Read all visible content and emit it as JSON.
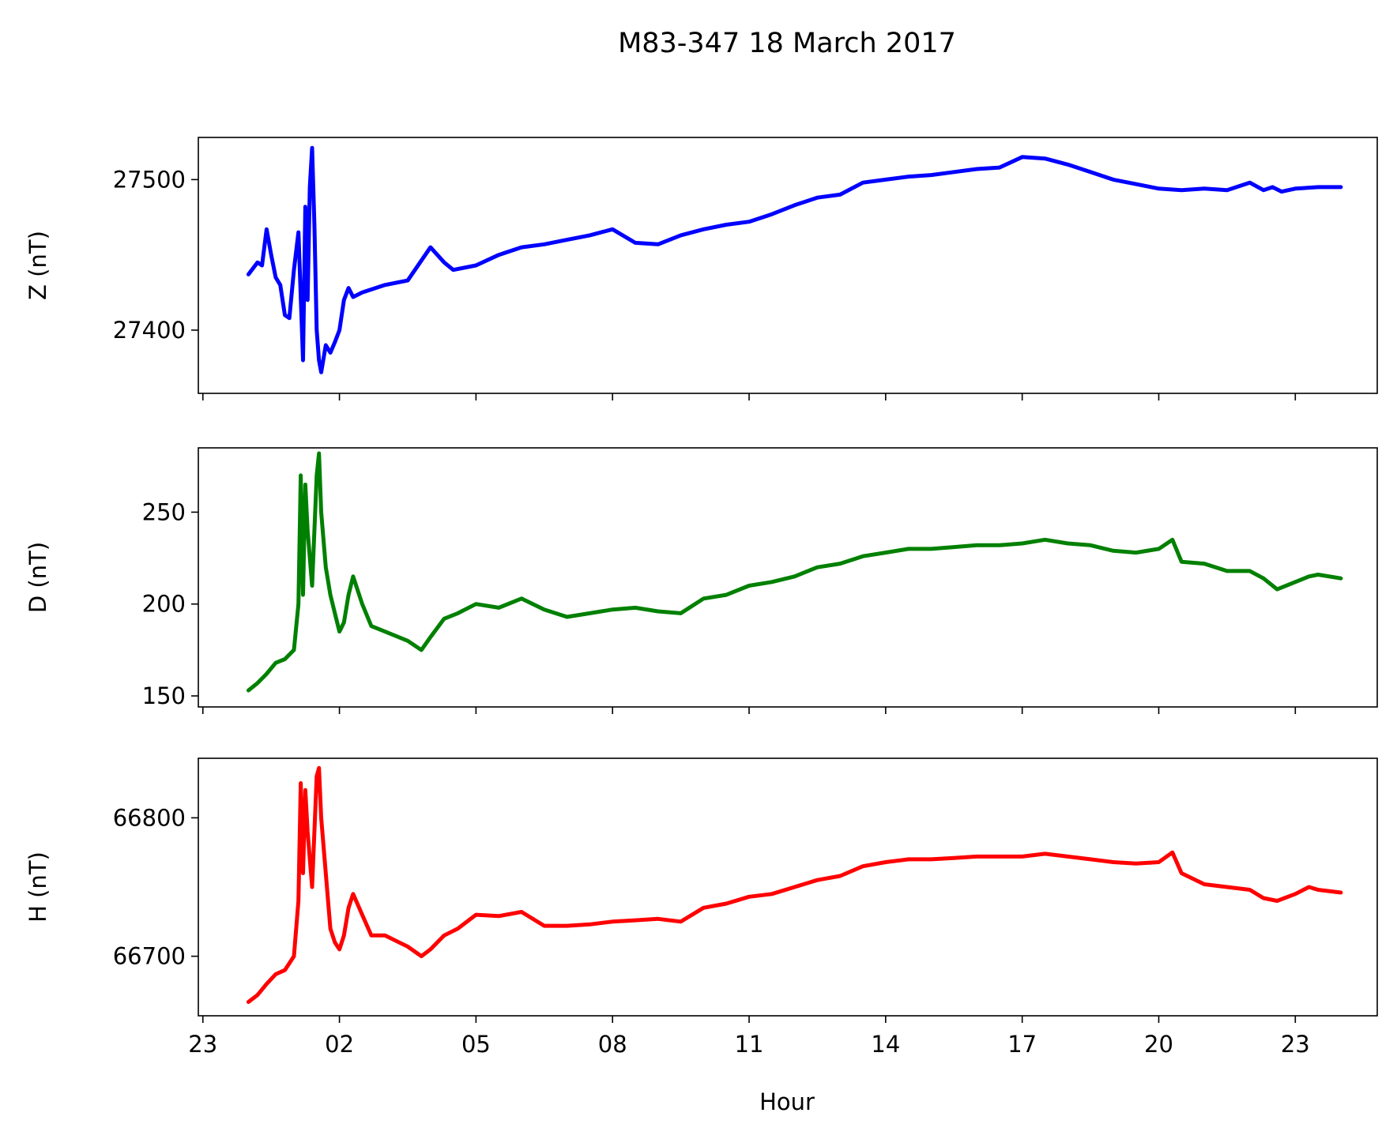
{
  "figure": {
    "title": "M83-347 18 March 2017",
    "xlabel": "Hour"
  },
  "chart_data": [
    {
      "type": "line",
      "ylabel": "Z (nT)",
      "color": "#0000ff",
      "xlim": [
        22.9,
        48.8
      ],
      "ylim": [
        27358,
        27528
      ],
      "x_ticks": [
        23,
        26,
        29,
        32,
        35,
        38,
        41,
        44,
        47
      ],
      "x_ticklabels": [
        "23",
        "02",
        "05",
        "08",
        "11",
        "14",
        "17",
        "20",
        "23"
      ],
      "y_ticks": [
        27400,
        27500
      ],
      "y_ticklabels": [
        "27400",
        "27500"
      ],
      "series": [
        {
          "x": [
            24.0,
            24.2,
            24.3,
            24.4,
            24.5,
            24.6,
            24.7,
            24.8,
            24.9,
            25.0,
            25.1,
            25.2,
            25.25,
            25.3,
            25.35,
            25.4,
            25.45,
            25.5,
            25.55,
            25.6,
            25.7,
            25.8,
            25.9,
            26.0,
            26.1,
            26.2,
            26.3,
            26.5,
            27.0,
            27.5,
            28.0,
            28.3,
            28.5,
            29.0,
            29.5,
            30.0,
            30.5,
            31.0,
            31.5,
            32.0,
            32.5,
            33.0,
            33.5,
            34.0,
            34.5,
            35.0,
            35.5,
            36.0,
            36.5,
            37.0,
            37.5,
            38.0,
            38.5,
            39.0,
            39.5,
            40.0,
            40.5,
            41.0,
            41.5,
            42.0,
            42.5,
            43.0,
            43.5,
            44.0,
            44.5,
            45.0,
            45.5,
            46.0,
            46.3,
            46.5,
            46.7,
            47.0,
            47.5,
            48.0
          ],
          "y": [
            27437,
            27445,
            27443,
            27467,
            27450,
            27435,
            27430,
            27410,
            27408,
            27440,
            27465,
            27380,
            27482,
            27420,
            27495,
            27521,
            27470,
            27400,
            27380,
            27372,
            27390,
            27385,
            27392,
            27400,
            27420,
            27428,
            27422,
            27425,
            27430,
            27433,
            27455,
            27445,
            27440,
            27443,
            27450,
            27455,
            27457,
            27460,
            27463,
            27467,
            27458,
            27457,
            27463,
            27467,
            27470,
            27472,
            27477,
            27483,
            27488,
            27490,
            27498,
            27500,
            27502,
            27503,
            27505,
            27507,
            27508,
            27515,
            27514,
            27510,
            27505,
            27500,
            27497,
            27494,
            27493,
            27494,
            27493,
            27498,
            27493,
            27495,
            27492,
            27494,
            27495,
            27495
          ]
        }
      ]
    },
    {
      "type": "line",
      "ylabel": "D (nT)",
      "color": "#008000",
      "xlim": [
        22.9,
        48.8
      ],
      "ylim": [
        144,
        285
      ],
      "x_ticks": [
        23,
        26,
        29,
        32,
        35,
        38,
        41,
        44,
        47
      ],
      "x_ticklabels": [
        "23",
        "02",
        "05",
        "08",
        "11",
        "14",
        "17",
        "20",
        "23"
      ],
      "y_ticks": [
        150,
        200,
        250
      ],
      "y_ticklabels": [
        "150",
        "200",
        "250"
      ],
      "series": [
        {
          "x": [
            24.0,
            24.2,
            24.4,
            24.6,
            24.8,
            25.0,
            25.1,
            25.15,
            25.2,
            25.25,
            25.3,
            25.4,
            25.5,
            25.55,
            25.6,
            25.7,
            25.8,
            25.9,
            26.0,
            26.1,
            26.2,
            26.3,
            26.5,
            26.7,
            27.0,
            27.5,
            27.8,
            28.0,
            28.3,
            28.6,
            29.0,
            29.5,
            30.0,
            30.5,
            31.0,
            31.5,
            32.0,
            32.5,
            33.0,
            33.5,
            34.0,
            34.5,
            35.0,
            35.5,
            36.0,
            36.5,
            37.0,
            37.5,
            38.0,
            38.5,
            39.0,
            39.5,
            40.0,
            40.5,
            41.0,
            41.5,
            42.0,
            42.5,
            43.0,
            43.5,
            44.0,
            44.3,
            44.5,
            45.0,
            45.5,
            46.0,
            46.3,
            46.6,
            47.0,
            47.3,
            47.5,
            48.0
          ],
          "y": [
            153,
            157,
            162,
            168,
            170,
            175,
            200,
            270,
            205,
            265,
            240,
            210,
            270,
            282,
            250,
            220,
            205,
            195,
            185,
            190,
            205,
            215,
            200,
            188,
            185,
            180,
            175,
            182,
            192,
            195,
            200,
            198,
            203,
            197,
            193,
            195,
            197,
            198,
            196,
            195,
            203,
            205,
            210,
            212,
            215,
            220,
            222,
            226,
            228,
            230,
            230,
            231,
            232,
            232,
            233,
            235,
            233,
            232,
            229,
            228,
            230,
            235,
            223,
            222,
            218,
            218,
            214,
            208,
            212,
            215,
            216,
            214
          ]
        }
      ]
    },
    {
      "type": "line",
      "ylabel": "H (nT)",
      "color": "#ff0000",
      "xlim": [
        22.9,
        48.8
      ],
      "ylim": [
        66657,
        66843
      ],
      "x_ticks": [
        23,
        26,
        29,
        32,
        35,
        38,
        41,
        44,
        47
      ],
      "x_ticklabels": [
        "23",
        "02",
        "05",
        "08",
        "11",
        "14",
        "17",
        "20",
        "23"
      ],
      "y_ticks": [
        66700,
        66800
      ],
      "y_ticklabels": [
        "66700",
        "66800"
      ],
      "series": [
        {
          "x": [
            24.0,
            24.2,
            24.4,
            24.6,
            24.8,
            25.0,
            25.1,
            25.15,
            25.2,
            25.25,
            25.3,
            25.4,
            25.5,
            25.55,
            25.6,
            25.7,
            25.8,
            25.9,
            26.0,
            26.1,
            26.2,
            26.3,
            26.5,
            26.7,
            27.0,
            27.5,
            27.8,
            28.0,
            28.3,
            28.6,
            29.0,
            29.5,
            30.0,
            30.5,
            31.0,
            31.5,
            32.0,
            32.5,
            33.0,
            33.5,
            34.0,
            34.5,
            35.0,
            35.5,
            36.0,
            36.5,
            37.0,
            37.5,
            38.0,
            38.5,
            39.0,
            39.5,
            40.0,
            40.5,
            41.0,
            41.5,
            42.0,
            42.5,
            43.0,
            43.5,
            44.0,
            44.3,
            44.5,
            45.0,
            45.5,
            46.0,
            46.3,
            46.6,
            47.0,
            47.3,
            47.5,
            48.0
          ],
          "y": [
            66667,
            66672,
            66680,
            66687,
            66690,
            66700,
            66740,
            66825,
            66760,
            66820,
            66790,
            66750,
            66830,
            66836,
            66800,
            66760,
            66720,
            66710,
            66705,
            66715,
            66735,
            66745,
            66730,
            66715,
            66715,
            66707,
            66700,
            66705,
            66715,
            66720,
            66730,
            66729,
            66732,
            66722,
            66722,
            66723,
            66725,
            66726,
            66727,
            66725,
            66735,
            66738,
            66743,
            66745,
            66750,
            66755,
            66758,
            66765,
            66768,
            66770,
            66770,
            66771,
            66772,
            66772,
            66772,
            66774,
            66772,
            66770,
            66768,
            66767,
            66768,
            66775,
            66760,
            66752,
            66750,
            66748,
            66742,
            66740,
            66745,
            66750,
            66748,
            66746
          ]
        }
      ]
    }
  ]
}
